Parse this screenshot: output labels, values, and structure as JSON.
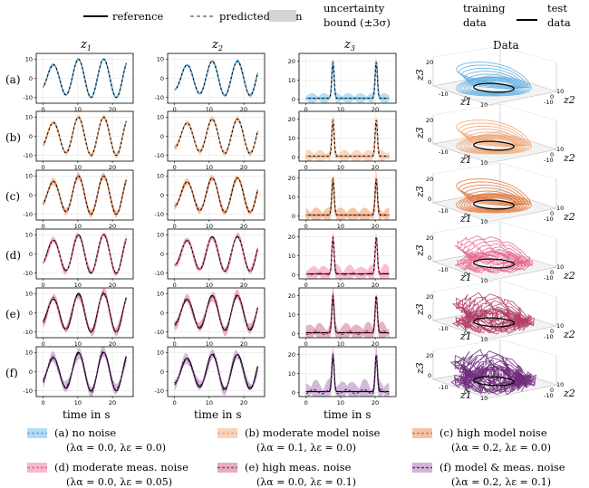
{
  "top_legend": {
    "reference": "reference",
    "predicted": "predicted mean",
    "bound_line1": "uncertainty",
    "bound_line2": "bound (±3σ)",
    "training_line1": "training",
    "training_line2": "data",
    "test_line1": "test",
    "test_line2": "data"
  },
  "columns": {
    "z1": "z",
    "z1_sub": "1",
    "z2": "z",
    "z2_sub": "2",
    "z3": "z",
    "z3_sub": "3",
    "data": "Data"
  },
  "xlabel": "time in s",
  "rows": [
    {
      "label": "(a)",
      "color": "#5aade0",
      "band": "#9fd3f2"
    },
    {
      "label": "(b)",
      "color": "#f2a270",
      "band": "#f8c9a8"
    },
    {
      "label": "(c)",
      "color": "#e0743a",
      "band": "#f1b48e"
    },
    {
      "label": "(d)",
      "color": "#e8648c",
      "band": "#f4a9bf"
    },
    {
      "label": "(e)",
      "color": "#b23a66",
      "band": "#dc9ab4"
    },
    {
      "label": "(f)",
      "color": "#6e2c7a",
      "band": "#c6a3cd"
    }
  ],
  "legend_items": [
    {
      "name": "(a) no noise",
      "params": "(λα = 0.0, λε = 0.0)"
    },
    {
      "name": "(b) moderate model noise",
      "params": "(λα = 0.1, λε = 0.0)"
    },
    {
      "name": "(c) high model noise",
      "params": "(λα = 0.2, λε = 0.0)"
    },
    {
      "name": "(d) moderate meas. noise",
      "params": "(λα = 0.0, λε = 0.05)"
    },
    {
      "name": "(e) high meas. noise",
      "params": "(λα = 0.0, λε = 0.1)"
    },
    {
      "name": "(f) model & meas. noise",
      "params": "(λα = 0.2, λε = 0.1)"
    }
  ],
  "chart_data": {
    "type": "line",
    "xlim": [
      -2,
      26
    ],
    "x_ticks": [
      0,
      10,
      20
    ],
    "panels": {
      "z1": {
        "ylim": [
          -13,
          13
        ],
        "y_ticks": [
          -10,
          0,
          10
        ]
      },
      "z2": {
        "ylim": [
          -13,
          13
        ],
        "y_ticks": [
          -10,
          0,
          10
        ]
      },
      "z3": {
        "ylim": [
          -2,
          24
        ],
        "y_ticks": [
          0,
          10,
          20
        ]
      }
    },
    "phase_ticks": {
      "z1": [
        "-10",
        "0",
        "10"
      ],
      "z2": [
        "-10",
        "0",
        "10"
      ],
      "z3": [
        "0",
        "20"
      ]
    },
    "series": [
      "reference",
      "predicted mean",
      "uncertainty bound (±3σ)"
    ]
  }
}
